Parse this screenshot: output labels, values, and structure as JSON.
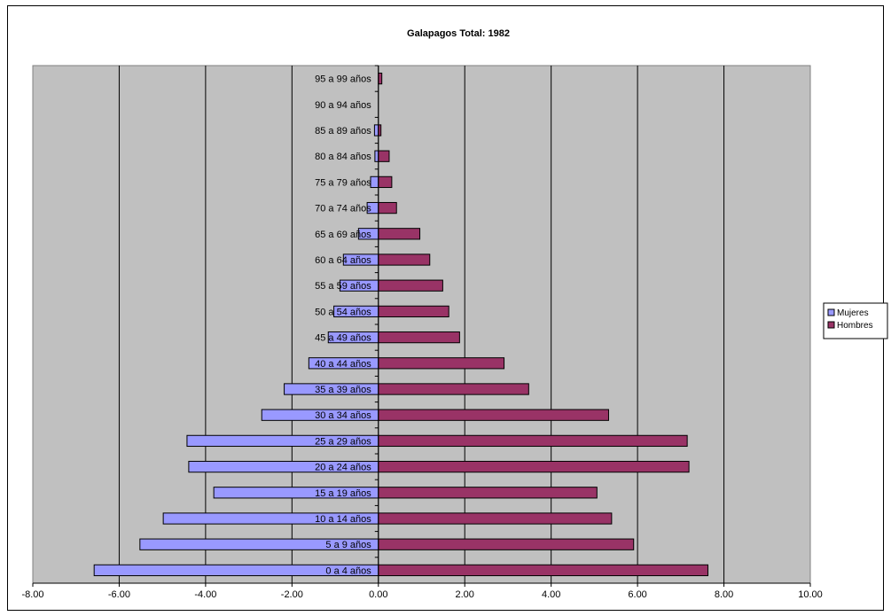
{
  "chart_data": {
    "type": "bar",
    "orientation": "horizontal",
    "title": "Galapagos Total: 1982",
    "categories": [
      "0 a 4 años",
      "5 a 9 años",
      "10 a 14 años",
      "15 a 19 años",
      "20 a 24 años",
      "25 a 29 años",
      "30 a 34 años",
      "35 a 39 años",
      "40 a 44 años",
      "45 a 49 años",
      "50 a 54 años",
      "55 a 59 años",
      "60 a 64 años",
      "65 a 69 años",
      "70 a 74 años",
      "75 a 79 años",
      "80 a 84 años",
      "85 a 89 años",
      "90 a 94 años",
      "95 a 99 años"
    ],
    "series": [
      {
        "name": "Mujeres",
        "color": "#9999ff",
        "values": [
          -6.58,
          -5.52,
          -4.98,
          -3.81,
          -4.39,
          -4.43,
          -2.7,
          -2.18,
          -1.61,
          -1.16,
          -1.03,
          -0.89,
          -0.81,
          -0.46,
          -0.26,
          -0.18,
          -0.08,
          -0.09,
          0.0,
          0.0
        ]
      },
      {
        "name": "Hombres",
        "color": "#993366",
        "values": [
          7.63,
          5.91,
          5.4,
          5.06,
          7.19,
          7.15,
          5.33,
          3.48,
          2.91,
          1.88,
          1.63,
          1.49,
          1.19,
          0.96,
          0.42,
          0.31,
          0.25,
          0.06,
          0.0,
          0.08
        ]
      }
    ],
    "xlim": [
      -8,
      10
    ],
    "xticks": [
      "-8.00",
      "-6.00",
      "-4.00",
      "-2.00",
      "0.00",
      "2.00",
      "4.00",
      "6.00",
      "8.00",
      "10.00"
    ],
    "grid": true,
    "legend_position": "right",
    "plot_background": "#c0c0c0"
  }
}
